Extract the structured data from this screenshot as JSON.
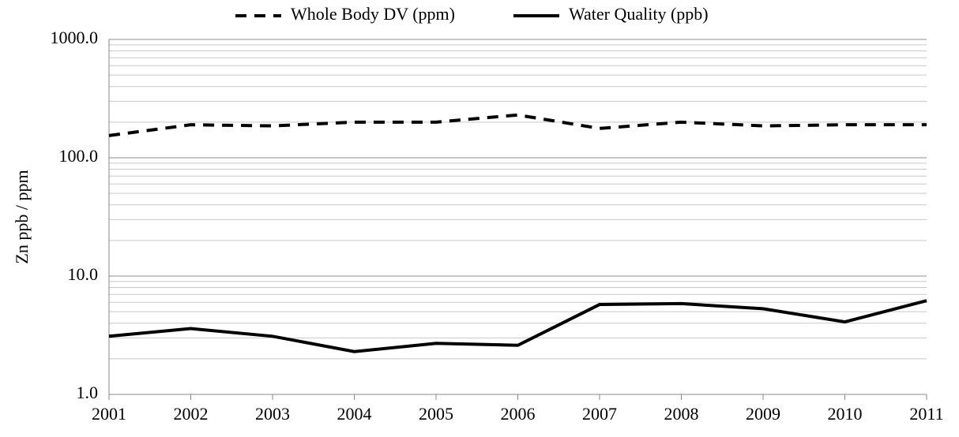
{
  "chart_data": {
    "type": "line",
    "y_label": "Zn ppb / ppm",
    "x": [
      2001,
      2002,
      2003,
      2004,
      2005,
      2006,
      2007,
      2008,
      2009,
      2010,
      2011
    ],
    "xlim": [
      2001,
      2011
    ],
    "xticks": [
      2001,
      2002,
      2003,
      2004,
      2005,
      2006,
      2007,
      2008,
      2009,
      2010,
      2011
    ],
    "ylim": [
      1,
      1000
    ],
    "log_y": true,
    "yticks": [
      {
        "value": 1,
        "label": "1.0"
      },
      {
        "value": 10,
        "label": "10.0"
      },
      {
        "value": 100,
        "label": "100.0"
      },
      {
        "value": 1000,
        "label": "1000.0"
      }
    ],
    "minor_yticks": [
      2,
      3,
      4,
      5,
      6,
      7,
      8,
      9,
      20,
      30,
      40,
      50,
      60,
      70,
      80,
      90,
      200,
      300,
      400,
      500,
      600,
      700,
      800,
      900
    ],
    "grid": true,
    "legend": "top",
    "series": [
      {
        "name": "Whole Body DV (ppm)",
        "color": "#000000",
        "line_style": "dashed",
        "values": [
          154,
          190,
          186,
          200,
          200,
          230,
          177,
          200,
          186,
          190,
          190
        ]
      },
      {
        "name": "Water Quality (ppb)",
        "color": "#000000",
        "line_style": "solid",
        "values": [
          3.1,
          3.6,
          3.1,
          2.3,
          2.7,
          2.6,
          5.75,
          5.85,
          5.3,
          4.1,
          6.2
        ]
      }
    ]
  }
}
